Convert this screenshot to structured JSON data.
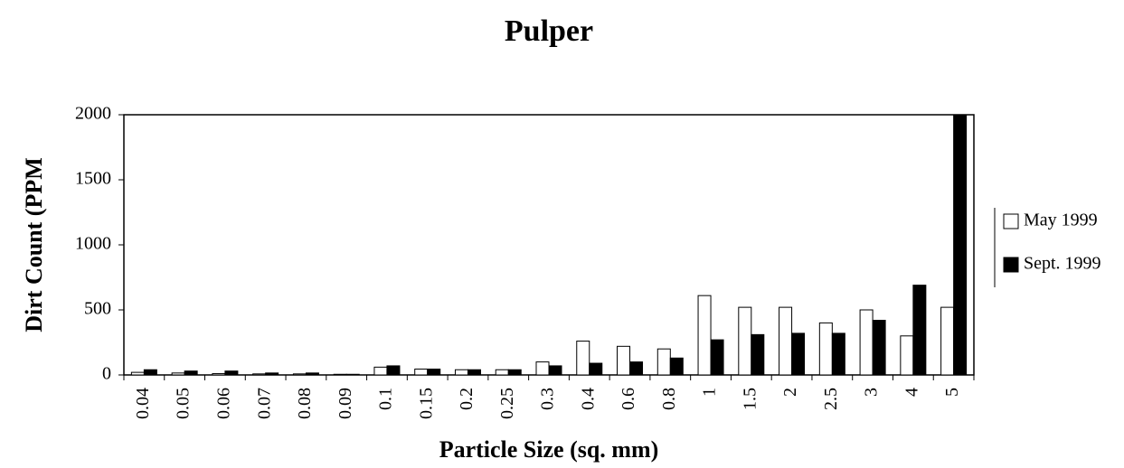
{
  "chart_data": {
    "type": "bar",
    "title": "Pulper",
    "x_label": "Particle Size (sq. mm)",
    "y_label": "Dirt Count (PPM",
    "categories": [
      "0.04",
      "0.05",
      "0.06",
      "0.07",
      "0.08",
      "0.09",
      "0.1",
      "0.15",
      "0.2",
      "0.25",
      "0.3",
      "0.4",
      "0.6",
      "0.8",
      "1",
      "1.5",
      "2",
      "2.5",
      "3",
      "4",
      "5"
    ],
    "series": [
      {
        "name": "May 1999",
        "color": "#ffffff",
        "values": [
          20,
          15,
          10,
          8,
          8,
          5,
          60,
          45,
          40,
          40,
          100,
          260,
          220,
          200,
          610,
          520,
          520,
          400,
          500,
          300,
          520
        ]
      },
      {
        "name": "Sept. 1999",
        "color": "#000000",
        "values": [
          40,
          30,
          30,
          15,
          15,
          5,
          70,
          45,
          40,
          40,
          70,
          90,
          100,
          130,
          270,
          310,
          320,
          320,
          420,
          690,
          2000
        ]
      }
    ],
    "ylim": [
      0,
      2000
    ],
    "yticks": [
      0,
      500,
      1000,
      1500,
      2000
    ],
    "legend": "right"
  }
}
